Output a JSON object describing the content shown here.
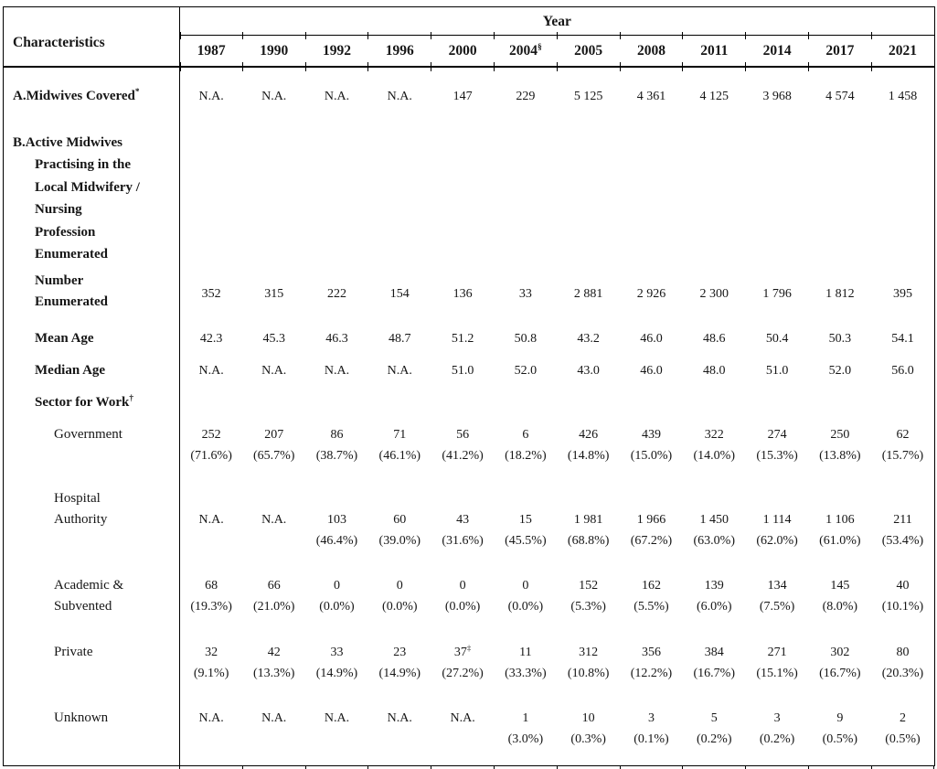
{
  "table": {
    "characteristics_label": "Characteristics",
    "year_group_label": "Year",
    "years": [
      {
        "label": "1987"
      },
      {
        "label": "1990"
      },
      {
        "label": "1992"
      },
      {
        "label": "1996"
      },
      {
        "label": "2000"
      },
      {
        "label": "2004",
        "sup": "§"
      },
      {
        "label": "2005"
      },
      {
        "label": "2008"
      },
      {
        "label": "2011"
      },
      {
        "label": "2014"
      },
      {
        "label": "2017"
      },
      {
        "label": "2021"
      }
    ],
    "rows": [
      {
        "name": "midwives-covered",
        "label_lines": [
          "A.Midwives Covered"
        ],
        "label_sup": "*",
        "bold": true,
        "indent": 0,
        "values": [
          "N.A.",
          "N.A.",
          "N.A.",
          "N.A.",
          "147",
          "229",
          "5 125",
          "4 361",
          "4 125",
          "3 968",
          "4 574",
          "1 458"
        ]
      },
      {
        "name": "active-midwives-heading",
        "label_lines": [
          "B.Active Midwives",
          "Practising in the",
          "Local Midwifery /",
          "Nursing",
          "Profession",
          "Enumerated"
        ],
        "bold": true,
        "indent": 0,
        "hang": true,
        "values": []
      },
      {
        "name": "number-enumerated",
        "label_lines": [
          "Number",
          "Enumerated"
        ],
        "bold": true,
        "indent": 1,
        "values": [
          "352",
          "315",
          "222",
          "154",
          "136",
          "33",
          "2 881",
          "2 926",
          "2 300",
          "1 796",
          "1 812",
          "395"
        ]
      },
      {
        "name": "mean-age",
        "label_lines": [
          "Mean Age"
        ],
        "bold": true,
        "indent": 1,
        "values": [
          "42.3",
          "45.3",
          "46.3",
          "48.7",
          "51.2",
          "50.8",
          "43.2",
          "46.0",
          "48.6",
          "50.4",
          "50.3",
          "54.1"
        ]
      },
      {
        "name": "median-age",
        "label_lines": [
          "Median Age"
        ],
        "bold": true,
        "indent": 1,
        "values": [
          "N.A.",
          "N.A.",
          "N.A.",
          "N.A.",
          "51.0",
          "52.0",
          "43.0",
          "46.0",
          "48.0",
          "51.0",
          "52.0",
          "56.0"
        ]
      },
      {
        "name": "sector-for-work",
        "label_lines": [
          "Sector for Work"
        ],
        "label_sup": "†",
        "bold": true,
        "indent": 1,
        "values": []
      },
      {
        "name": "sector-government",
        "label_lines": [
          "Government"
        ],
        "bold": false,
        "indent": 2,
        "values": [
          {
            "n": "252",
            "pct": "(71.6%)"
          },
          {
            "n": "207",
            "pct": "(65.7%)"
          },
          {
            "n": "86",
            "pct": "(38.7%)"
          },
          {
            "n": "71",
            "pct": "(46.1%)"
          },
          {
            "n": "56",
            "pct": "(41.2%)"
          },
          {
            "n": "6",
            "pct": "(18.2%)"
          },
          {
            "n": "426",
            "pct": "(14.8%)"
          },
          {
            "n": "439",
            "pct": "(15.0%)"
          },
          {
            "n": "322",
            "pct": "(14.0%)"
          },
          {
            "n": "274",
            "pct": "(15.3%)"
          },
          {
            "n": "250",
            "pct": "(13.8%)"
          },
          {
            "n": "62",
            "pct": "(15.7%)"
          }
        ]
      },
      {
        "name": "sector-hospital-authority",
        "label_lines": [
          "Hospital",
          "Authority"
        ],
        "bold": false,
        "indent": 2,
        "values": [
          "N.A.",
          "N.A.",
          {
            "n": "103",
            "pct": "(46.4%)"
          },
          {
            "n": "60",
            "pct": "(39.0%)"
          },
          {
            "n": "43",
            "pct": "(31.6%)"
          },
          {
            "n": "15",
            "pct": "(45.5%)"
          },
          {
            "n": "1 981",
            "pct": "(68.8%)"
          },
          {
            "n": "1 966",
            "pct": "(67.2%)"
          },
          {
            "n": "1 450",
            "pct": "(63.0%)"
          },
          {
            "n": "1 114",
            "pct": "(62.0%)"
          },
          {
            "n": "1 106",
            "pct": "(61.0%)"
          },
          {
            "n": "211",
            "pct": "(53.4%)"
          }
        ]
      },
      {
        "name": "sector-academic-subvented",
        "label_lines": [
          "Academic &",
          "Subvented"
        ],
        "bold": false,
        "indent": 2,
        "values": [
          {
            "n": "68",
            "pct": "(19.3%)"
          },
          {
            "n": "66",
            "pct": "(21.0%)"
          },
          {
            "n": "0",
            "pct": "(0.0%)"
          },
          {
            "n": "0",
            "pct": "(0.0%)"
          },
          {
            "n": "0",
            "pct": "(0.0%)"
          },
          {
            "n": "0",
            "pct": "(0.0%)"
          },
          {
            "n": "152",
            "pct": "(5.3%)"
          },
          {
            "n": "162",
            "pct": "(5.5%)"
          },
          {
            "n": "139",
            "pct": "(6.0%)"
          },
          {
            "n": "134",
            "pct": "(7.5%)"
          },
          {
            "n": "145",
            "pct": "(8.0%)"
          },
          {
            "n": "40",
            "pct": "(10.1%)"
          }
        ]
      },
      {
        "name": "sector-private",
        "label_lines": [
          "Private"
        ],
        "bold": false,
        "indent": 2,
        "values": [
          {
            "n": "32",
            "pct": "(9.1%)"
          },
          {
            "n": "42",
            "pct": "(13.3%)"
          },
          {
            "n": "33",
            "pct": "(14.9%)"
          },
          {
            "n": "23",
            "pct": "(14.9%)"
          },
          {
            "n": "37",
            "sup": "‡",
            "pct": "(27.2%)"
          },
          {
            "n": "11",
            "pct": "(33.3%)"
          },
          {
            "n": "312",
            "pct": "(10.8%)"
          },
          {
            "n": "356",
            "pct": "(12.2%)"
          },
          {
            "n": "384",
            "pct": "(16.7%)"
          },
          {
            "n": "271",
            "pct": "(15.1%)"
          },
          {
            "n": "302",
            "pct": "(16.7%)"
          },
          {
            "n": "80",
            "pct": "(20.3%)"
          }
        ]
      },
      {
        "name": "sector-unknown",
        "label_lines": [
          "Unknown"
        ],
        "bold": false,
        "indent": 2,
        "values": [
          "N.A.",
          "N.A.",
          "N.A.",
          "N.A.",
          "N.A.",
          {
            "n": "1",
            "pct": "(3.0%)"
          },
          {
            "n": "10",
            "pct": "(0.3%)"
          },
          {
            "n": "3",
            "pct": "(0.1%)"
          },
          {
            "n": "5",
            "pct": "(0.2%)"
          },
          {
            "n": "3",
            "pct": "(0.2%)"
          },
          {
            "n": "9",
            "pct": "(0.5%)"
          },
          {
            "n": "2",
            "pct": "(0.5%)"
          }
        ]
      }
    ]
  }
}
